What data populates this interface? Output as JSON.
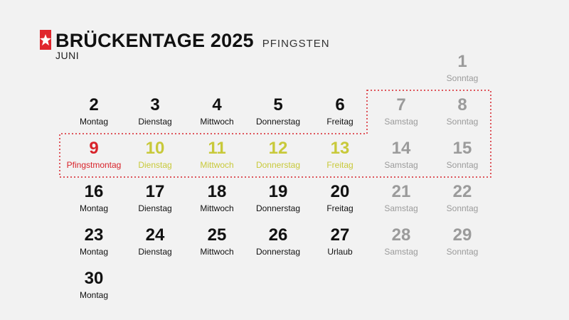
{
  "header": {
    "title": "BRÜCKENTAGE 2025",
    "subtitle": "PFINGSTEN",
    "month": "JUNI",
    "logo": "stern-logo"
  },
  "colors": {
    "normal": "#111111",
    "weekend": "#9b9b9b",
    "bridge": "#c8c93a",
    "holiday": "#d8232a",
    "outline": "#d8232a"
  },
  "days": [
    {
      "n": "1",
      "l": "Sonntag",
      "t": "grey"
    },
    {
      "n": "2",
      "l": "Montag",
      "t": "black"
    },
    {
      "n": "3",
      "l": "Dienstag",
      "t": "black"
    },
    {
      "n": "4",
      "l": "Mittwoch",
      "t": "black"
    },
    {
      "n": "5",
      "l": "Donnerstag",
      "t": "black"
    },
    {
      "n": "6",
      "l": "Freitag",
      "t": "black"
    },
    {
      "n": "7",
      "l": "Samstag",
      "t": "grey"
    },
    {
      "n": "8",
      "l": "Sonntag",
      "t": "grey"
    },
    {
      "n": "9",
      "l": "Pfingstmontag",
      "t": "red"
    },
    {
      "n": "10",
      "l": "Dienstag",
      "t": "yellow"
    },
    {
      "n": "11",
      "l": "Mittwoch",
      "t": "yellow"
    },
    {
      "n": "12",
      "l": "Donnerstag",
      "t": "yellow"
    },
    {
      "n": "13",
      "l": "Freitag",
      "t": "yellow"
    },
    {
      "n": "14",
      "l": "Samstag",
      "t": "grey"
    },
    {
      "n": "15",
      "l": "Sonntag",
      "t": "grey"
    },
    {
      "n": "16",
      "l": "Montag",
      "t": "black"
    },
    {
      "n": "17",
      "l": "Dienstag",
      "t": "black"
    },
    {
      "n": "18",
      "l": "Mittwoch",
      "t": "black"
    },
    {
      "n": "19",
      "l": "Donnerstag",
      "t": "black"
    },
    {
      "n": "20",
      "l": "Freitag",
      "t": "black"
    },
    {
      "n": "21",
      "l": "Samstag",
      "t": "grey"
    },
    {
      "n": "22",
      "l": "Sonntag",
      "t": "grey"
    },
    {
      "n": "23",
      "l": "Montag",
      "t": "black"
    },
    {
      "n": "24",
      "l": "Dienstag",
      "t": "black"
    },
    {
      "n": "25",
      "l": "Mittwoch",
      "t": "black"
    },
    {
      "n": "26",
      "l": "Donnerstag",
      "t": "black"
    },
    {
      "n": "27",
      "l": "Urlaub",
      "t": "black"
    },
    {
      "n": "28",
      "l": "Samstag",
      "t": "grey"
    },
    {
      "n": "29",
      "l": "Sonntag",
      "t": "grey"
    },
    {
      "n": "30",
      "l": "Montag",
      "t": "black"
    }
  ]
}
